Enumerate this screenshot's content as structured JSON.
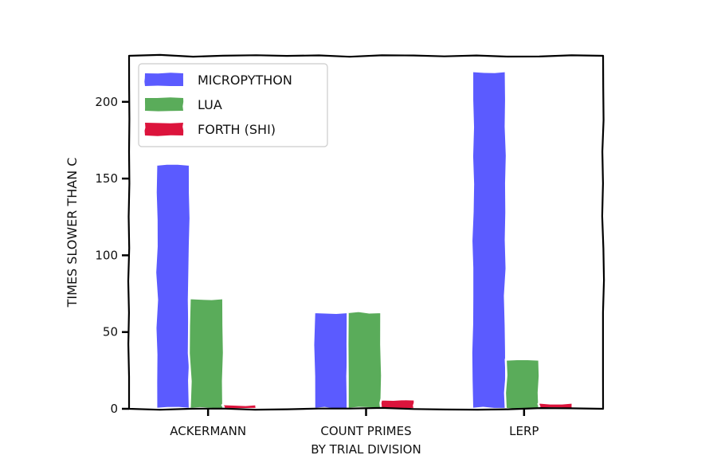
{
  "chart_data": {
    "type": "bar",
    "categories": [
      "Ackermann",
      "Count primes|by trial division",
      "Lerp"
    ],
    "series": [
      {
        "name": "MicroPython",
        "values": [
          159,
          63,
          220
        ],
        "color": "#5b5bff"
      },
      {
        "name": "Lua",
        "values": [
          72,
          63,
          32
        ],
        "color": "#5aac5a"
      },
      {
        "name": "Forth (shi)",
        "values": [
          3,
          6,
          4
        ],
        "color": "#dc143c"
      }
    ],
    "xlabel": "",
    "ylabel": "Times slower than C",
    "ylim": [
      0,
      230
    ],
    "yticks": [
      0,
      50,
      100,
      150,
      200
    ],
    "legend_position": "top-left",
    "grid": false,
    "style": "xkcd"
  }
}
